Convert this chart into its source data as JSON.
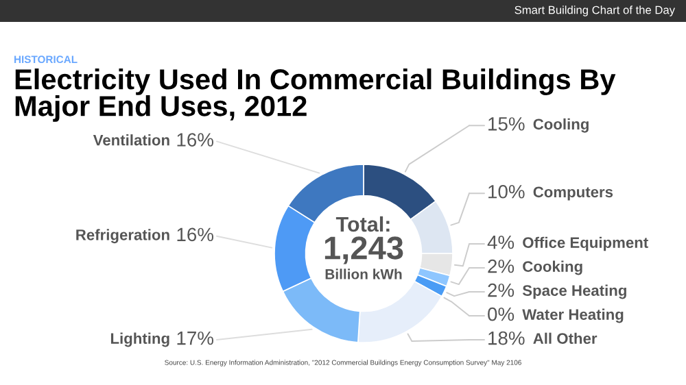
{
  "chart_data": {
    "type": "donut",
    "title": "Electricity Used In Commercial Buildings By Major End Uses, 2012",
    "subtitle": "HISTORICAL",
    "categories": [
      "Cooling",
      "Computers",
      "Office Equipment",
      "Cooking",
      "Space Heating",
      "Water Heating",
      "All Other",
      "Lighting",
      "Refrigeration",
      "Ventilation"
    ],
    "values": [
      15,
      10,
      4,
      2,
      2,
      0,
      18,
      17,
      16,
      16
    ],
    "value_labels": [
      "15%",
      "10%",
      "4%",
      "2%",
      "2%",
      "0%",
      "18%",
      "17%",
      "16%",
      "16%"
    ],
    "colors": [
      "#2c4f80",
      "#dde6f2",
      "#e6e6e6",
      "#8ec6ff",
      "#4a9cf5",
      "#3b82d8",
      "#e6eefa",
      "#7cbaf8",
      "#4e9af5",
      "#3e78c0"
    ],
    "annotations": [
      "Smart Building Chart of the Day",
      "Total:",
      "1,243",
      "Billion kWh",
      "Source: U.S. Energy Information Administration, \"2012 Commercial Buildings Energy Consumption Survey\" May 2106"
    ]
  }
}
